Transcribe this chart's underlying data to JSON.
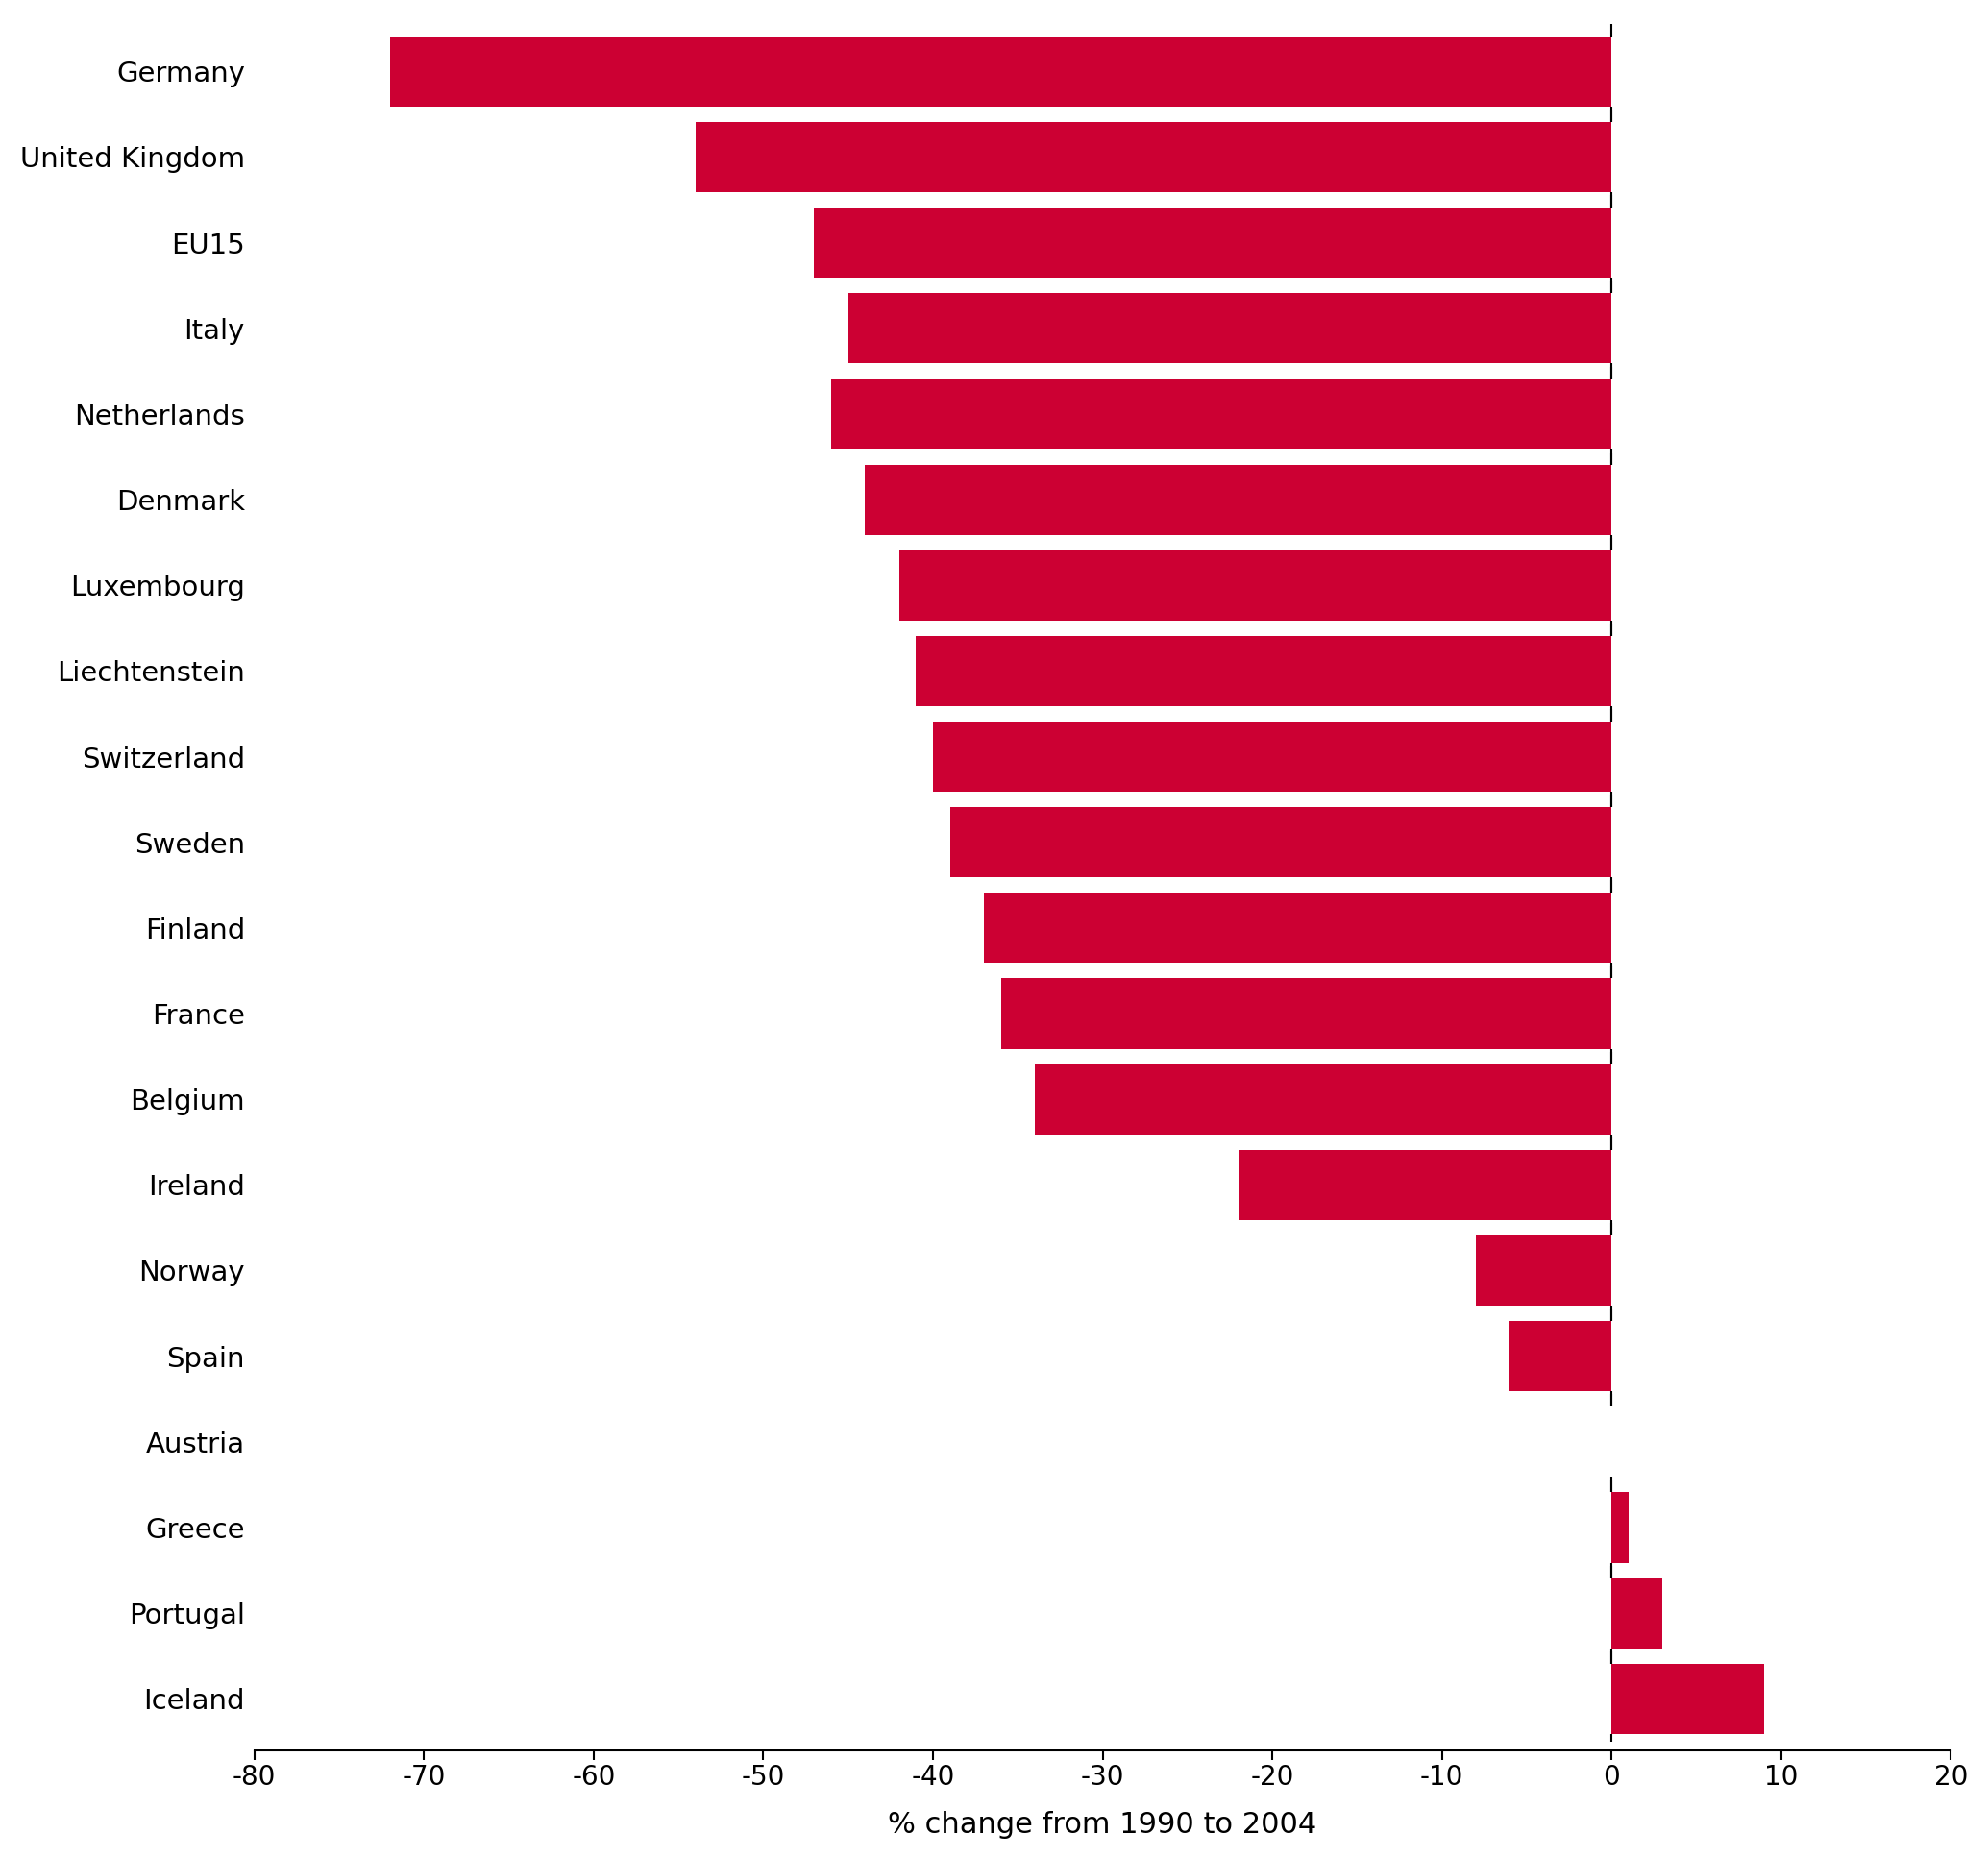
{
  "countries": [
    "Germany",
    "United Kingdom",
    "EU15",
    "Italy",
    "Netherlands",
    "Denmark",
    "Luxembourg",
    "Liechtenstein",
    "Switzerland",
    "Sweden",
    "Finland",
    "France",
    "Belgium",
    "Ireland",
    "Norway",
    "Spain",
    "Austria",
    "Greece",
    "Portugal",
    "Iceland"
  ],
  "values": [
    -72,
    -54,
    -47,
    -45,
    -46,
    -44,
    -42,
    -41,
    -40,
    -39,
    -37,
    -36,
    -34,
    -22,
    -8,
    -6,
    0,
    1,
    3,
    9
  ],
  "bar_color": "#cc0033",
  "xlim": [
    -80,
    20
  ],
  "xticks": [
    -80,
    -70,
    -60,
    -50,
    -40,
    -30,
    -20,
    -10,
    0,
    10,
    20
  ],
  "xlabel": "% change from 1990 to 2004",
  "xlabel_fontsize": 22,
  "tick_fontsize": 20,
  "ytick_fontsize": 21,
  "bar_height": 0.82,
  "background_color": "#ffffff",
  "spine_color": "#000000"
}
